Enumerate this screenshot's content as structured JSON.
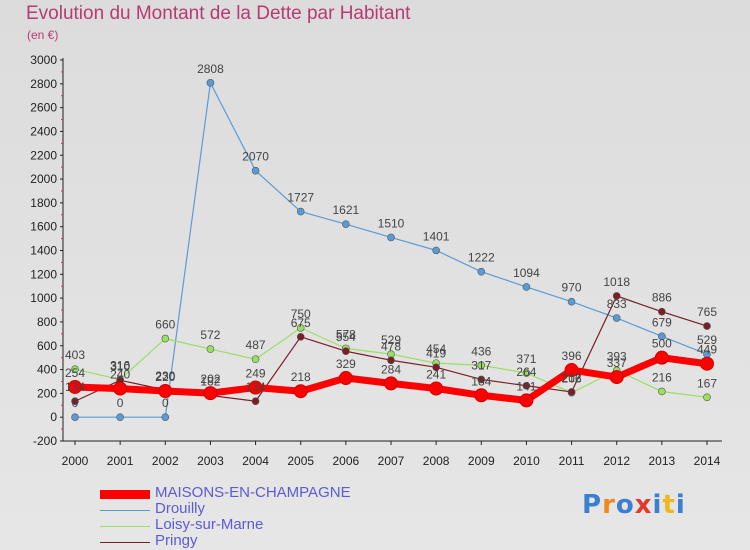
{
  "header": {
    "title": "Evolution du Montant de la Dette par Habitant",
    "subtitle": "(en €)"
  },
  "brand": {
    "text": "Proxiti",
    "letters": [
      "P",
      "r",
      "o",
      "x",
      "i",
      "t",
      "i"
    ],
    "colors": [
      "#3a7fd0",
      "#f08a1e",
      "#3a7fd0",
      "#e23a2a",
      "#3a7fd0",
      "#f0b81e",
      "#3a7fd0"
    ]
  },
  "chart_data": {
    "type": "line",
    "title": "Evolution du Montant de la Dette par Habitant",
    "subtitle": "(en €)",
    "xlabel": "",
    "ylabel": "",
    "ylim": [
      -200,
      3000
    ],
    "yticks": [
      -200,
      0,
      200,
      400,
      600,
      800,
      1000,
      1200,
      1400,
      1600,
      1800,
      2000,
      2200,
      2400,
      2600,
      2800,
      3000
    ],
    "grid": false,
    "legend_placement": "bottom-left",
    "categories": [
      "2000",
      "2001",
      "2002",
      "2003",
      "2004",
      "2005",
      "2006",
      "2007",
      "2008",
      "2009",
      "2010",
      "2011",
      "2012",
      "2013",
      "2014"
    ],
    "series": [
      {
        "name": "MAISONS-EN-CHAMPAGNE",
        "color": "#ff0000",
        "values": [
          254,
          240,
          220,
          202,
          249,
          218,
          329,
          284,
          241,
          184,
          141,
          396,
          337,
          500,
          449
        ]
      },
      {
        "name": "Drouilly",
        "color": "#5b9bd5",
        "values": [
          0,
          0,
          0,
          2808,
          2070,
          1727,
          1621,
          1510,
          1401,
          1222,
          1094,
          970,
          833,
          679,
          529
        ]
      },
      {
        "name": "Loisy-sur-Marne",
        "color": "#99e060",
        "values": [
          403,
          316,
          660,
          572,
          487,
          750,
          578,
          529,
          454,
          436,
          371,
          206,
          393,
          216,
          167
        ]
      },
      {
        "name": "Pringy",
        "color": "#7a1e28",
        "values": [
          134,
          310,
          230,
          182,
          134,
          675,
          554,
          478,
          419,
          317,
          264,
          212,
          1018,
          886,
          765
        ]
      }
    ]
  }
}
